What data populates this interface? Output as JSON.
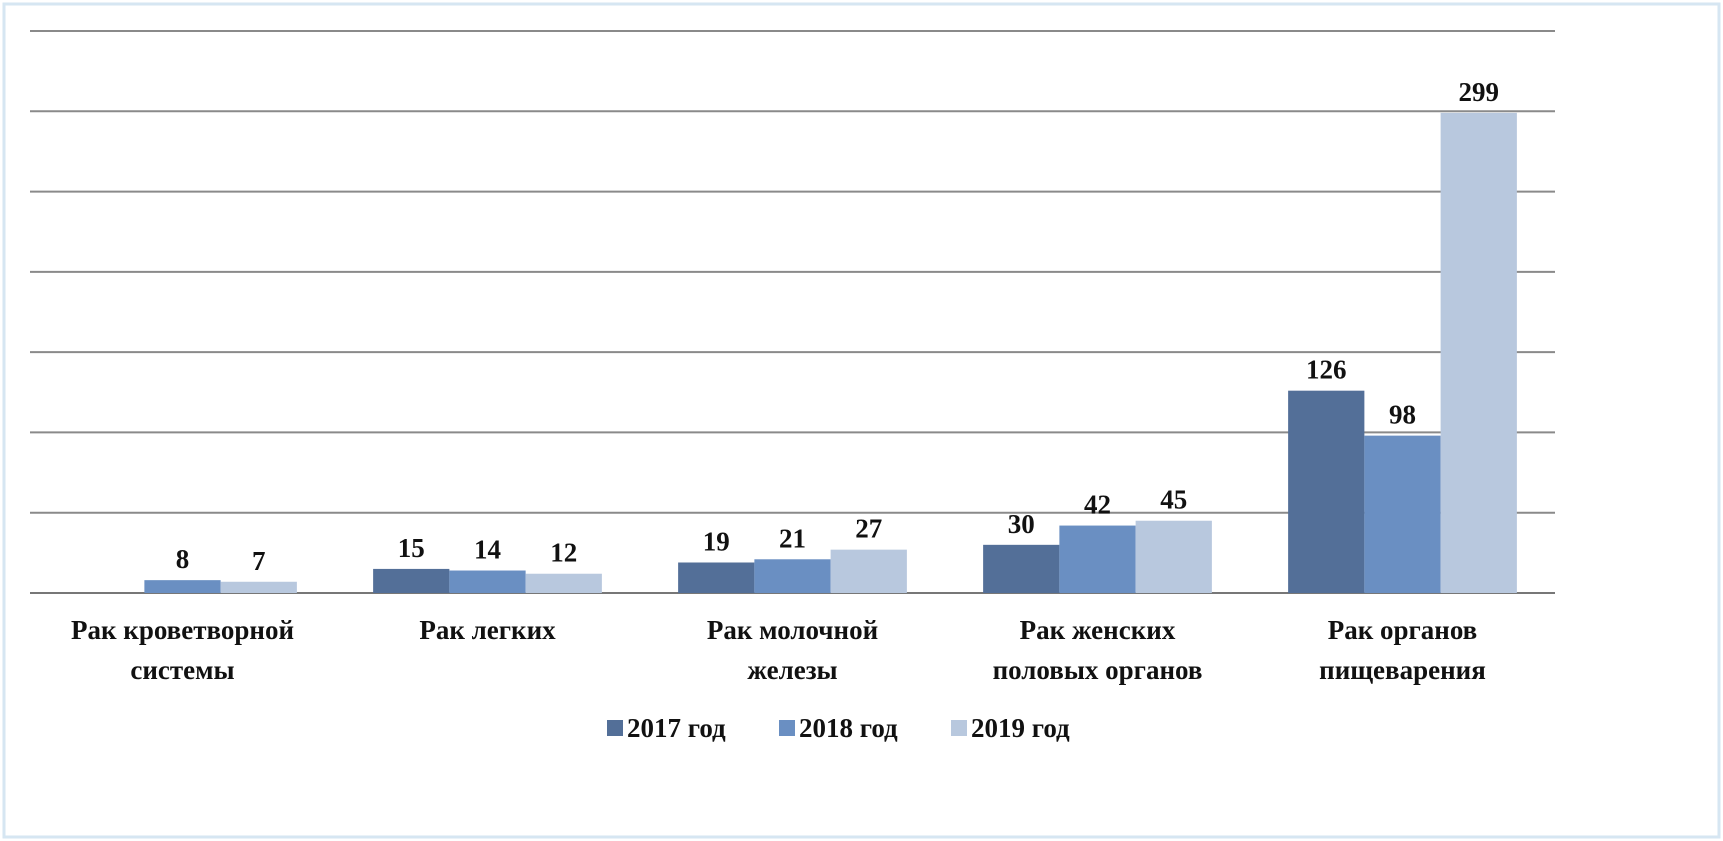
{
  "chart_data": {
    "type": "bar",
    "categories": [
      "Рак кроветворной\nсистемы",
      "Рак легких",
      "Рак молочной\nжелезы",
      "Рак женских\nполовых органов",
      "Рак органов\nпищеварения"
    ],
    "series": [
      {
        "name": "2017 год",
        "color": "#536f98",
        "values": [
          null,
          15,
          19,
          30,
          126
        ]
      },
      {
        "name": "2018 год",
        "color": "#6a8fc2",
        "values": [
          8,
          14,
          21,
          42,
          98
        ]
      },
      {
        "name": "2019 год",
        "color": "#b8c8de",
        "values": [
          7,
          12,
          27,
          45,
          299
        ]
      }
    ],
    "ylim": [
      0,
      350
    ],
    "yticks": [
      0,
      50,
      100,
      150,
      200,
      250,
      300,
      350
    ],
    "grid": true,
    "legend": "bottom"
  }
}
